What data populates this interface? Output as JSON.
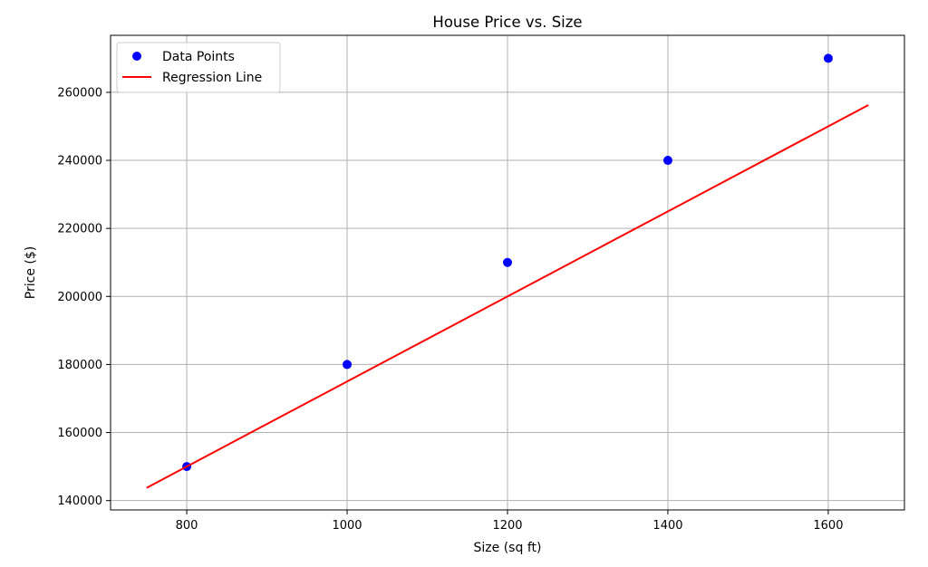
{
  "chart_data": {
    "type": "scatter",
    "title": "House Price vs. Size",
    "xlabel": "Size (sq ft)",
    "ylabel": "Price ($)",
    "xlim": [
      705,
      1695
    ],
    "ylim": [
      137250,
      276750
    ],
    "xticks": [
      800,
      1000,
      1200,
      1400,
      1600
    ],
    "yticks": [
      140000,
      160000,
      180000,
      200000,
      220000,
      240000,
      260000
    ],
    "grid": true,
    "legend_position": "top-left",
    "series": [
      {
        "name": "Data Points",
        "kind": "scatter",
        "color": "#0000ff",
        "x": [
          800,
          1000,
          1200,
          1400,
          1600
        ],
        "y": [
          150000,
          180000,
          210000,
          240000,
          270000
        ]
      },
      {
        "name": "Regression Line",
        "kind": "line",
        "color": "#ff0000",
        "x": [
          750,
          1650
        ],
        "y": [
          143750,
          256250
        ]
      }
    ]
  }
}
